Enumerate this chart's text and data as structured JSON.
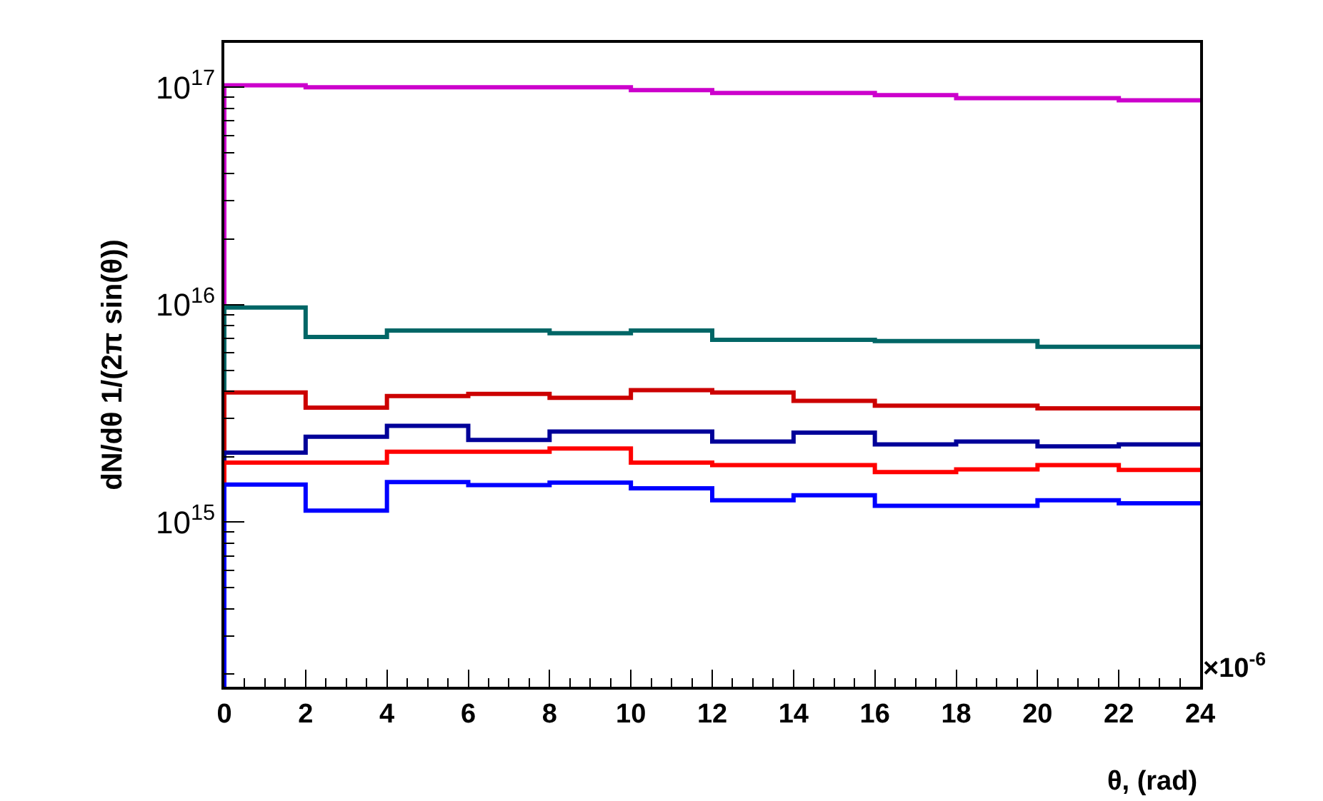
{
  "chart_data": {
    "type": "histogram",
    "xlabel": "θ, (rad)",
    "ylabel": "dN/dθ 1/(2π sin(θ))",
    "annotations": [
      "×10$^{-6}$"
    ],
    "bins": [
      0,
      2,
      4,
      6,
      8,
      10,
      12,
      14,
      16,
      18,
      20,
      22,
      24
    ],
    "series": [
      {
        "color": "#cc00cc",
        "values": [
          1.02e+17,
          1e+17,
          1e+17,
          1e+17,
          1e+17,
          9.7e+16,
          9.4e+16,
          9.4e+16,
          9.2e+16,
          8.9e+16,
          8.9e+16,
          8.7e+16
        ]
      },
      {
        "color": "#006666",
        "values": [
          9700000000000000.0,
          7100000000000000.0,
          7600000000000000.0,
          7600000000000000.0,
          7400000000000000.0,
          7600000000000000.0,
          6900000000000000.0,
          6900000000000000.0,
          6800000000000000.0,
          6800000000000000.0,
          6400000000000000.0,
          6400000000000000.0
        ]
      },
      {
        "color": "#cc0000",
        "values": [
          3950000000000000.0,
          3360000000000000.0,
          3800000000000000.0,
          3890000000000000.0,
          3730000000000000.0,
          4050000000000000.0,
          3950000000000000.0,
          3610000000000000.0,
          3430000000000000.0,
          3430000000000000.0,
          3340000000000000.0,
          3340000000000000.0
        ]
      },
      {
        "color": "#000099",
        "values": [
          2090000000000000.0,
          2470000000000000.0,
          2770000000000000.0,
          2390000000000000.0,
          2610000000000000.0,
          2610000000000000.0,
          2350000000000000.0,
          2580000000000000.0,
          2280000000000000.0,
          2350000000000000.0,
          2230000000000000.0,
          2280000000000000.0
        ]
      },
      {
        "color": "#ff0000",
        "values": [
          1880000000000000.0,
          1880000000000000.0,
          2110000000000000.0,
          2110000000000000.0,
          2180000000000000.0,
          1880000000000000.0,
          1830000000000000.0,
          1830000000000000.0,
          1700000000000000.0,
          1750000000000000.0,
          1830000000000000.0,
          1740000000000000.0
        ]
      },
      {
        "color": "#0000ff",
        "values": [
          1490000000000000.0,
          1130000000000000.0,
          1530000000000000.0,
          1480000000000000.0,
          1520000000000000.0,
          1430000000000000.0,
          1260000000000000.0,
          1330000000000000.0,
          1190000000000000.0,
          1190000000000000.0,
          1260000000000000.0,
          1220000000000000.0
        ]
      }
    ],
    "xlim": [
      0,
      24
    ],
    "xticks": [
      0,
      2,
      4,
      6,
      8,
      10,
      12,
      14,
      16,
      18,
      20,
      22,
      24
    ],
    "ylim": [
      175000000000000.0,
      1.6e+17
    ],
    "yticks": [
      {
        "value": 1000000000000000.0,
        "label": "10$^{15}$"
      },
      {
        "value": 1e+16,
        "label": "10$^{16}$"
      },
      {
        "value": 1e+17,
        "label": "10$^{17}$"
      }
    ],
    "log": "y"
  }
}
